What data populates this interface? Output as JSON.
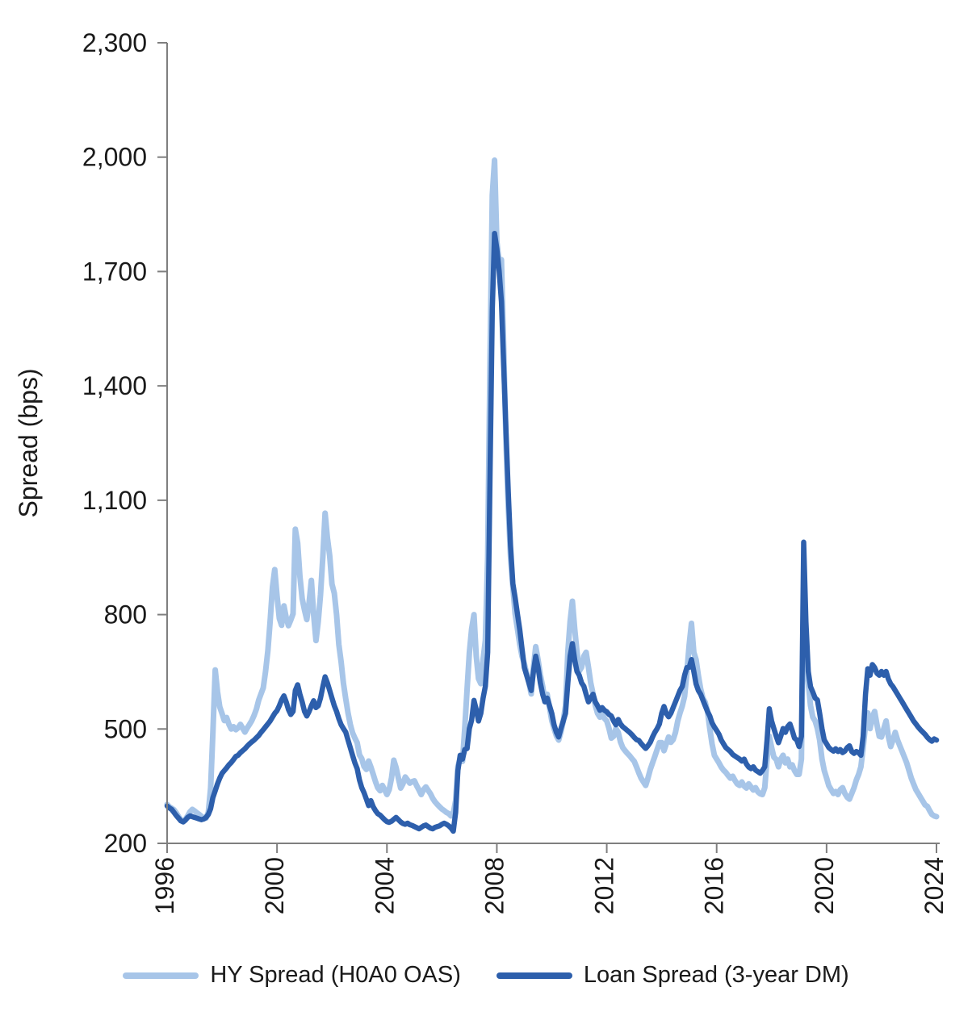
{
  "chart": {
    "background": "#ffffff",
    "axis_color": "#7f7f7f",
    "text_color": "#1a1a1a",
    "y_axis": {
      "title": "Spread (bps)",
      "ticks": [
        {
          "value": 200,
          "label": "200"
        },
        {
          "value": 500,
          "label": "500"
        },
        {
          "value": 800,
          "label": "800"
        },
        {
          "value": 1100,
          "label": "1,100"
        },
        {
          "value": 1400,
          "label": "1,400"
        },
        {
          "value": 1700,
          "label": "1,700"
        },
        {
          "value": 2000,
          "label": "2,000"
        },
        {
          "value": 2300,
          "label": "2,300"
        }
      ]
    },
    "x_axis": {
      "tick_labels": [
        "1996",
        "2000",
        "2004",
        "2008",
        "2012",
        "2016",
        "2020",
        "2024"
      ],
      "tick_index_step": 48
    },
    "legend": {
      "items": [
        {
          "label": "HY Spread (H0A0 OAS)",
          "color": "#a7c5e8"
        },
        {
          "label": "Loan Spread (3-year DM)",
          "color": "#2d5fac"
        }
      ]
    }
  },
  "chart_data": {
    "type": "line",
    "x_unit": "months",
    "x_tick_labels": [
      "1996",
      "2000",
      "2004",
      "2008",
      "2012",
      "2016",
      "2020",
      "2024"
    ],
    "x_tick_indices": [
      0,
      48,
      96,
      144,
      192,
      240,
      288,
      336
    ],
    "ylim": [
      200,
      2300
    ],
    "ylabel": "Spread (bps)",
    "grid": false,
    "legend_position": "bottom",
    "series": [
      {
        "name": "HY Spread (H0A0 OAS)",
        "color": "#a7c5e8",
        "stroke_width": 7,
        "values": [
          302,
          296,
          292,
          288,
          280,
          270,
          262,
          258,
          263,
          272,
          283,
          289,
          285,
          280,
          276,
          271,
          267,
          266,
          282,
          345,
          490,
          655,
          598,
          558,
          540,
          522,
          530,
          512,
          500,
          506,
          498,
          503,
          512,
          502,
          492,
          503,
          512,
          522,
          536,
          552,
          576,
          592,
          608,
          652,
          705,
          782,
          872,
          918,
          850,
          790,
          772,
          823,
          792,
          771,
          786,
          802,
          1024,
          988,
          900,
          842,
          812,
          787,
          832,
          890,
          800,
          732,
          782,
          852,
          952,
          1066,
          1002,
          954,
          880,
          856,
          800,
          722,
          675,
          620,
          580,
          542,
          512,
          490,
          476,
          464,
          432,
          422,
          402,
          394,
          416,
          400,
          381,
          362,
          346,
          338,
          352,
          341,
          328,
          341,
          372,
          418,
          399,
          371,
          345,
          356,
          374,
          366,
          358,
          362,
          364,
          351,
          340,
          328,
          341,
          348,
          339,
          330,
          318,
          309,
          302,
          296,
          290,
          286,
          281,
          278,
          272,
          279,
          312,
          402,
          423,
          415,
          502,
          605,
          700,
          762,
          800,
          692,
          632,
          619,
          682,
          732,
          952,
          1450,
          1900,
          1992,
          1780,
          1722,
          1731,
          1500,
          1252,
          1082,
          952,
          872,
          802,
          762,
          722,
          691,
          671,
          646,
          622,
          592,
          662,
          716,
          681,
          642,
          612,
          572,
          591,
          556,
          522,
          501,
          482,
          471,
          492,
          521,
          561,
          702,
          782,
          835,
          762,
          702,
          652,
          662,
          691,
          701,
          662,
          621,
          592,
          562,
          541,
          531,
          541,
          528,
          521,
          501,
          476,
          481,
          501,
          491,
          466,
          451,
          443,
          436,
          430,
          422,
          415,
          401,
          385,
          371,
          361,
          352,
          371,
          394,
          411,
          428,
          446,
          464,
          464,
          443,
          461,
          479,
          465,
          472,
          491,
          521,
          542,
          561,
          586,
          648,
          721,
          777,
          701,
          682,
          641,
          605,
          581,
          570,
          546,
          501,
          461,
          431,
          421,
          411,
          400,
          392,
          386,
          378,
          371,
          376,
          365,
          356,
          352,
          361,
          350,
          345,
          356,
          348,
          340,
          346,
          335,
          330,
          328,
          346,
          421,
          481,
          451,
          426,
          420,
          401,
          421,
          431,
          411,
          421,
          401,
          406,
          391,
          381,
          381,
          421,
          870,
          702,
          621,
          561,
          531,
          521,
          501,
          471,
          421,
          391,
          371,
          351,
          341,
          331,
          336,
          328,
          341,
          346,
          331,
          321,
          316,
          331,
          346,
          366,
          381,
          401,
          451,
          511,
          542,
          501,
          531,
          546,
          511,
          481,
          479,
          501,
          521,
          481,
          454,
          471,
          491,
          471,
          456,
          441,
          426,
          411,
          391,
          371,
          356,
          341,
          331,
          321,
          311,
          301,
          297,
          286,
          276,
          272,
          270
        ]
      },
      {
        "name": "Loan Spread (3-year DM)",
        "color": "#2d5fac",
        "stroke_width": 6.5,
        "values": [
          298,
          293,
          289,
          281,
          273,
          266,
          259,
          256,
          261,
          268,
          272,
          270,
          268,
          266,
          264,
          262,
          264,
          268,
          276,
          291,
          320,
          338,
          356,
          371,
          384,
          391,
          398,
          406,
          412,
          420,
          428,
          431,
          438,
          443,
          448,
          455,
          461,
          466,
          471,
          477,
          483,
          491,
          498,
          506,
          513,
          521,
          531,
          541,
          548,
          561,
          576,
          587,
          571,
          551,
          538,
          546,
          601,
          616,
          591,
          571,
          546,
          534,
          546,
          561,
          574,
          556,
          561,
          581,
          611,
          637,
          621,
          601,
          581,
          561,
          546,
          527,
          511,
          501,
          492,
          471,
          451,
          431,
          411,
          396,
          366,
          346,
          333,
          316,
          299,
          312,
          296,
          286,
          278,
          274,
          268,
          262,
          257,
          255,
          258,
          263,
          268,
          262,
          256,
          252,
          250,
          253,
          249,
          247,
          244,
          241,
          238,
          242,
          246,
          248,
          244,
          240,
          238,
          242,
          244,
          246,
          250,
          253,
          250,
          246,
          240,
          232,
          281,
          391,
          431,
          421,
          446,
          449,
          501,
          523,
          575,
          551,
          521,
          541,
          581,
          612,
          701,
          1150,
          1600,
          1800,
          1760,
          1701,
          1621,
          1451,
          1281,
          1121,
          981,
          881,
          844,
          801,
          761,
          711,
          661,
          641,
          621,
          601,
          651,
          691,
          661,
          621,
          591,
          571,
          581,
          561,
          541,
          511,
          491,
          479,
          501,
          521,
          541,
          621,
          691,
          724,
          681,
          651,
          641,
          621,
          612,
          591,
          571,
          581,
          591,
          571,
          561,
          549,
          556,
          549,
          545,
          538,
          534,
          521,
          511,
          525,
          513,
          506,
          501,
          496,
          491,
          485,
          478,
          472,
          470,
          462,
          455,
          449,
          456,
          465,
          479,
          491,
          501,
          513,
          541,
          559,
          541,
          532,
          541,
          556,
          571,
          586,
          601,
          612,
          641,
          661,
          662,
          682,
          651,
          618,
          601,
          591,
          576,
          561,
          546,
          534,
          516,
          505,
          496,
          486,
          471,
          461,
          451,
          446,
          441,
          433,
          429,
          425,
          421,
          416,
          421,
          408,
          400,
          396,
          401,
          392,
          388,
          384,
          391,
          401,
          471,
          553,
          521,
          501,
          481,
          464,
          481,
          501,
          491,
          506,
          513,
          496,
          476,
          471,
          454,
          481,
          990,
          781,
          651,
          611,
          597,
          581,
          576,
          541,
          501,
          471,
          461,
          451,
          446,
          442,
          448,
          441,
          446,
          438,
          442,
          451,
          456,
          441,
          436,
          441,
          438,
          431,
          481,
          591,
          658,
          641,
          669,
          661,
          646,
          641,
          651,
          641,
          651,
          631,
          618,
          611,
          601,
          591,
          581,
          571,
          561,
          551,
          541,
          531,
          521,
          513,
          505,
          498,
          492,
          486,
          478,
          472,
          468,
          474,
          471
        ]
      }
    ]
  }
}
